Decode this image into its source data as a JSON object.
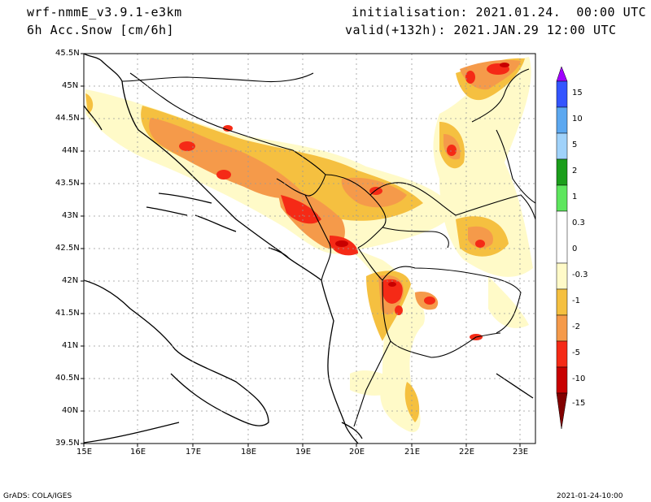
{
  "header": {
    "model": "wrf-nmmE_v3.9.1-e3km",
    "field": "6h Acc.Snow [cm/6h]",
    "init": "initialisation: 2021.01.24.  00:00 UTC",
    "valid": "valid(+132h): 2021.JAN.29 12:00 UTC"
  },
  "map": {
    "lat_labels": [
      "45.5N",
      "45N",
      "44.5N",
      "44N",
      "43.5N",
      "43N",
      "42.5N",
      "42N",
      "41.5N",
      "41N",
      "40.5N",
      "40N",
      "39.5N"
    ],
    "lon_labels": [
      "15E",
      "16E",
      "17E",
      "18E",
      "19E",
      "20E",
      "21E",
      "22E",
      "23E"
    ]
  },
  "legend": {
    "labels": [
      "15",
      "10",
      "5",
      "2",
      "1",
      "0.3",
      "0",
      "-0.3",
      "-1",
      "-2",
      "-5",
      "-10",
      "-15"
    ],
    "colors": [
      "#a000ff",
      "#3355ff",
      "#5ca8f0",
      "#a0d2fa",
      "#1b9e1b",
      "#5ee65e",
      "#ffffff",
      "#fffac8",
      "#f5c040",
      "#f59a4a",
      "#f52a16",
      "#c80000",
      "#820000"
    ]
  },
  "footer": {
    "left": "GrADS: COLA/IGES",
    "right": "2021-01-24-10:00"
  }
}
